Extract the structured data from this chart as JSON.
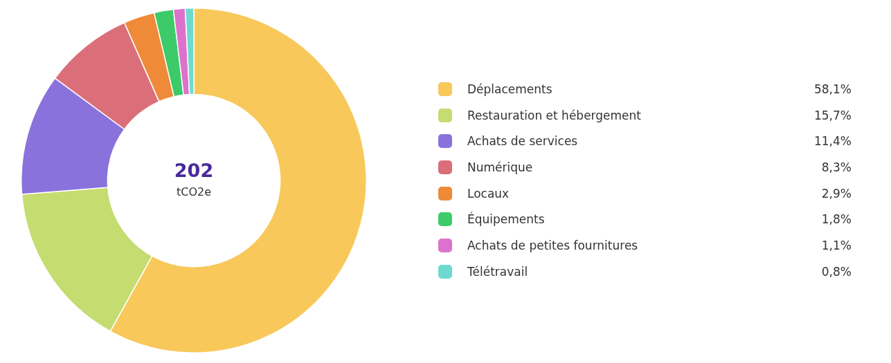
{
  "chart_data": {
    "type": "donut",
    "categories": [
      "Déplacements",
      "Restauration et hébergement",
      "Achats de services",
      "Numérique",
      "Locaux",
      "Équipements",
      "Achats de petites fournitures",
      "Télétravail"
    ],
    "values": [
      58.1,
      15.7,
      11.4,
      8.3,
      2.9,
      1.8,
      1.1,
      0.8
    ],
    "colors": [
      "#f8c85a",
      "#c5dc70",
      "#8a72dd",
      "#da6f7a",
      "#ef8a38",
      "#3ccb68",
      "#dd72cc",
      "#6ed9cf"
    ],
    "value_labels": [
      "58,1%",
      "15,7%",
      "11,4%",
      "8,3%",
      "2,9%",
      "1,8%",
      "1,1%",
      "0,8%"
    ],
    "annotations": [
      "202",
      "tCO2e"
    ],
    "legend": "right"
  }
}
